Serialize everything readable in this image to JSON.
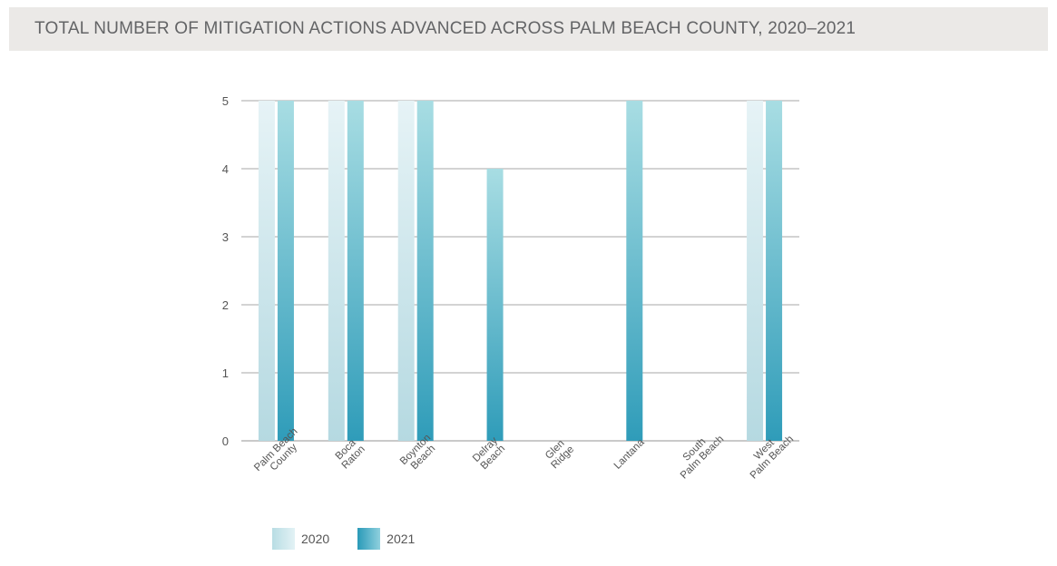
{
  "header": {
    "title": "TOTAL NUMBER OF MITIGATION ACTIONS ADVANCED ACROSS PALM BEACH COUNTY, 2020–2021"
  },
  "colors": {
    "title_bg": "#ebe9e7",
    "title_text": "#636466",
    "series_2020_light": "#e3f2f5",
    "series_2020_dark": "#b8dde4",
    "series_2021_light": "#a6dde3",
    "series_2021_dark": "#2a9ab8",
    "gridline": "#8a8a8a"
  },
  "chart_data": {
    "type": "bar",
    "title": "TOTAL NUMBER OF MITIGATION ACTIONS ADVANCED ACROSS PALM BEACH COUNTY, 2020–2021",
    "categories": [
      [
        "Palm Beach",
        "County"
      ],
      [
        "Boca",
        "Raton"
      ],
      [
        "Boynton",
        "Beach"
      ],
      [
        "Delray",
        "Beach"
      ],
      [
        "Glen",
        "Ridge"
      ],
      [
        "Lantana"
      ],
      [
        "South",
        "Palm Beach"
      ],
      [
        "West",
        "Palm Beach"
      ]
    ],
    "series": [
      {
        "name": "2020",
        "values": [
          5,
          5,
          5,
          0,
          0,
          0,
          0,
          5
        ]
      },
      {
        "name": "2021",
        "values": [
          5,
          5,
          5,
          4,
          0,
          5,
          0,
          5
        ]
      }
    ],
    "ylim": [
      0,
      5
    ],
    "yticks": [
      "0",
      "1",
      "2",
      "3",
      "4",
      "5"
    ],
    "grid": true,
    "legend_position": "bottom-left"
  },
  "legend": {
    "items": [
      {
        "label": "2020"
      },
      {
        "label": "2021"
      }
    ]
  }
}
